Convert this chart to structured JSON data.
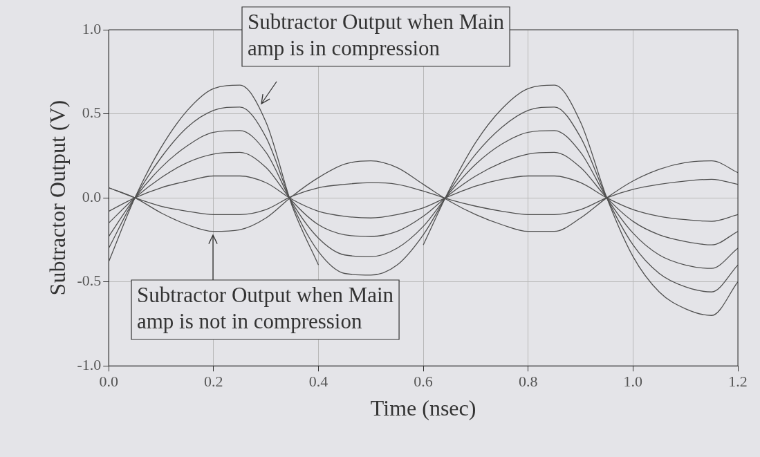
{
  "chart_data": {
    "type": "line",
    "xlabel": "Time (nsec)",
    "ylabel": "Subtractor Output (V)",
    "x": [
      0,
      0.05,
      0.1,
      0.15,
      0.2,
      0.25,
      0.3,
      0.35,
      0.4,
      0.45,
      0.5,
      0.55,
      0.6,
      0.65,
      0.7,
      0.75,
      0.8,
      0.85,
      0.9,
      0.95,
      1.0,
      1.05,
      1.1,
      1.15,
      1.2
    ],
    "series": [
      {
        "color": "#505050",
        "values": [
          -0.38,
          0,
          0.3,
          0.52,
          0.65,
          0.67,
          0.45,
          -0.05,
          -0.4,
          null,
          null,
          null,
          -0.28,
          0.05,
          0.33,
          0.53,
          0.65,
          0.67,
          0.45,
          0,
          -0.35,
          -0.56,
          -0.66,
          -0.7,
          -0.5
        ]
      },
      {
        "color": "#505050",
        "values": [
          -0.3,
          0,
          0.24,
          0.42,
          0.52,
          0.54,
          0.36,
          -0.04,
          -0.32,
          -0.45,
          -0.46,
          -0.4,
          -0.22,
          0.04,
          0.26,
          0.42,
          0.52,
          0.54,
          0.36,
          0,
          -0.28,
          -0.45,
          -0.53,
          -0.56,
          -0.4
        ]
      },
      {
        "color": "#505050",
        "values": [
          -0.23,
          0,
          0.18,
          0.31,
          0.39,
          0.4,
          0.27,
          -0.03,
          -0.24,
          -0.34,
          -0.35,
          -0.3,
          -0.17,
          0.03,
          0.2,
          0.32,
          0.39,
          0.4,
          0.27,
          0,
          -0.21,
          -0.34,
          -0.4,
          -0.42,
          -0.3
        ]
      },
      {
        "color": "#505050",
        "values": [
          -0.15,
          0,
          0.12,
          0.21,
          0.26,
          0.27,
          0.18,
          -0.02,
          -0.16,
          -0.22,
          -0.23,
          -0.2,
          -0.11,
          0.02,
          0.13,
          0.21,
          0.26,
          0.27,
          0.18,
          0,
          -0.14,
          -0.22,
          -0.26,
          -0.28,
          -0.2
        ]
      },
      {
        "color": "#505050",
        "values": [
          -0.08,
          0,
          0.06,
          0.1,
          0.13,
          0.13,
          0.09,
          -0.01,
          -0.08,
          -0.11,
          -0.12,
          -0.1,
          -0.06,
          0.01,
          0.07,
          0.11,
          0.13,
          0.13,
          0.09,
          0,
          -0.07,
          -0.11,
          -0.13,
          -0.14,
          -0.1
        ]
      },
      {
        "color": "#505050",
        "values": [
          0.06,
          0,
          -0.05,
          -0.08,
          -0.1,
          -0.1,
          -0.07,
          0.01,
          0.06,
          0.08,
          0.09,
          0.08,
          0.04,
          -0.01,
          -0.05,
          -0.08,
          -0.1,
          -0.1,
          -0.07,
          0,
          0.05,
          0.08,
          0.1,
          0.11,
          0.08
        ]
      },
      {
        "color": "#505050",
        "values": [
          0.06,
          0,
          -0.09,
          -0.16,
          -0.2,
          -0.19,
          -0.12,
          0.01,
          0.12,
          0.2,
          0.22,
          0.18,
          0.08,
          -0.02,
          -0.1,
          -0.16,
          -0.2,
          -0.2,
          -0.12,
          0,
          0.1,
          0.17,
          0.21,
          0.22,
          0.15
        ]
      }
    ],
    "xlim": [
      0,
      1.2
    ],
    "xticks": [
      {
        "value": 0,
        "label": "0.0"
      },
      0.2,
      0.4,
      0.6,
      0.8,
      {
        "value": 1,
        "label": "1.0"
      },
      1.2
    ],
    "ylim": [
      -1.0,
      1.0
    ],
    "yticks": [
      {
        "value": -1,
        "label": "-1.0"
      },
      -0.5,
      {
        "value": 0,
        "label": "0.0"
      },
      0.5,
      {
        "value": 1,
        "label": "1.0"
      }
    ],
    "grid": true,
    "legend": false,
    "marker": "none",
    "line_style": "solid",
    "annotations": [
      "Subtractor Output when Main amp is in compression",
      "Subtractor Output when Main amp is not in compression"
    ]
  }
}
